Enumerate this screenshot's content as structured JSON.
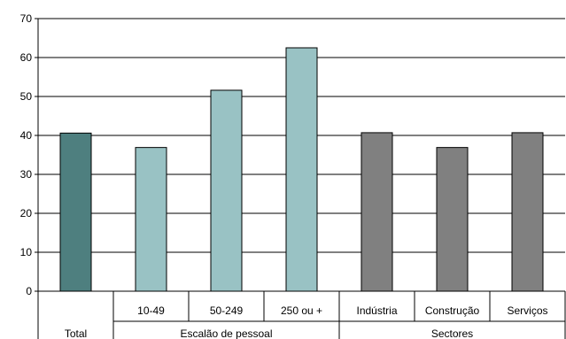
{
  "chart_data": {
    "type": "bar",
    "title": "",
    "xlabel": "",
    "ylabel": "",
    "ylim": [
      0,
      70
    ],
    "yticks": [
      0,
      10,
      20,
      30,
      40,
      50,
      60,
      70
    ],
    "grid": true,
    "legend": "none",
    "categories": [
      "Total",
      "10-49",
      "50-249",
      "250 ou +",
      "Indústria",
      "Construção",
      "Serviços"
    ],
    "groups": [
      {
        "label": "Total",
        "members": [
          "Total"
        ]
      },
      {
        "label": "Escalão de pessoal",
        "members": [
          "10-49",
          "50-249",
          "250 ou +"
        ]
      },
      {
        "label": "Sectores",
        "members": [
          "Indústria",
          "Construção",
          "Serviços"
        ]
      }
    ],
    "values": [
      40.6,
      36.9,
      51.6,
      62.5,
      40.7,
      36.9,
      40.7
    ],
    "colors": [
      "#4e7f7f",
      "#99c2c4",
      "#99c2c4",
      "#99c2c4",
      "#808080",
      "#808080",
      "#808080"
    ]
  }
}
